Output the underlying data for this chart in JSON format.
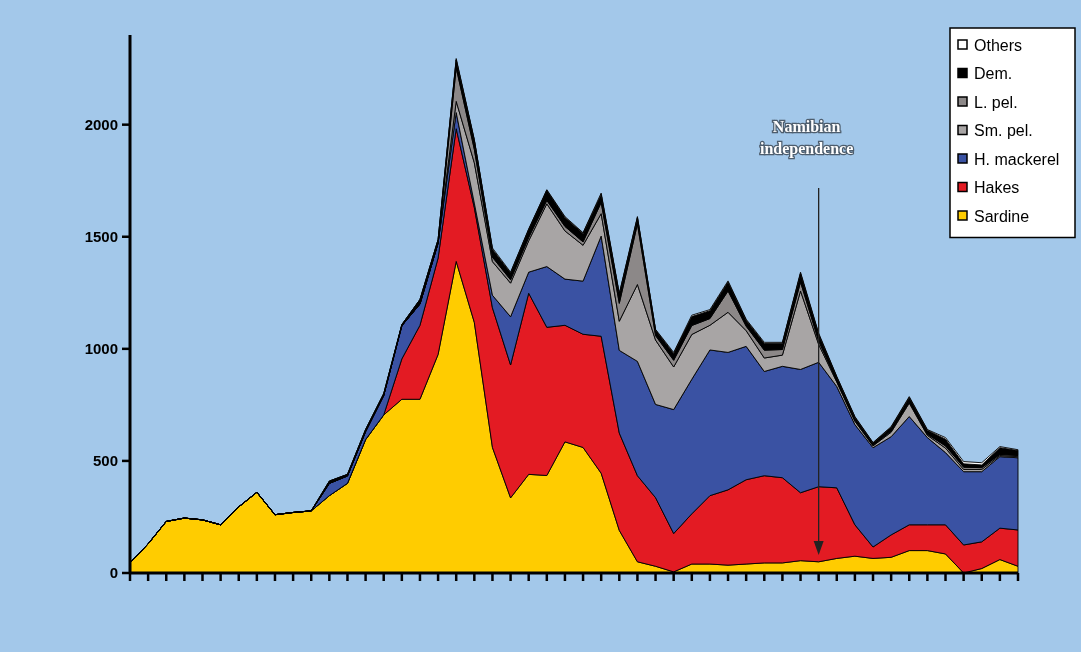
{
  "chart_data": {
    "type": "area",
    "stacked": true,
    "legend": "top right",
    "tick_labels": "y",
    "categories": [
      null,
      null,
      null,
      null,
      null,
      null,
      null,
      null,
      null,
      null,
      null,
      null,
      null,
      null,
      null,
      null,
      null,
      null,
      null,
      null,
      null,
      null,
      null,
      null,
      null,
      null,
      null,
      null,
      null,
      null,
      null,
      null,
      null,
      null,
      null,
      null,
      null,
      null,
      null,
      null,
      null,
      null,
      null,
      null,
      null,
      null,
      null,
      null,
      null,
      null
    ],
    "ylim": [
      0,
      2400
    ],
    "yticks": [
      0,
      500,
      1000,
      1500,
      2000
    ],
    "annotations": [
      "Namibian independence"
    ],
    "series": [
      {
        "name": "Sardine",
        "color": "#ffcc00",
        "values": [
          45,
          130,
          230,
          245,
          237,
          215,
          295,
          360,
          260,
          270,
          277,
          345,
          400,
          595,
          705,
          775,
          775,
          975,
          1390,
          1118,
          560,
          335,
          440,
          435,
          585,
          560,
          445,
          190,
          50,
          30,
          5,
          40,
          40,
          35,
          40,
          45,
          45,
          55,
          50,
          65,
          75,
          65,
          70,
          100,
          100,
          85,
          0,
          20,
          60,
          30
        ]
      },
      {
        "name": "Hakes",
        "color": "#e31b23",
        "values": [
          0,
          0,
          0,
          0,
          0,
          0,
          0,
          0,
          0,
          0,
          0,
          0,
          0,
          0,
          0,
          180,
          330,
          430,
          592,
          512,
          623,
          593,
          808,
          661,
          520,
          505,
          611,
          434,
          384,
          306,
          171,
          224,
          305,
          336,
          376,
          389,
          380,
          303,
          335,
          315,
          140,
          51,
          100,
          115,
          115,
          130,
          125,
          119,
          140,
          162
        ]
      },
      {
        "name": "H. mackerel",
        "color": "#3a52a3",
        "values": [
          0,
          0,
          0,
          0,
          0,
          0,
          0,
          0,
          0,
          0,
          0,
          55,
          33,
          36,
          87,
          148,
          95,
          67,
          72,
          20,
          56,
          215,
          94,
          271,
          206,
          237,
          447,
          369,
          510,
          416,
          553,
          600,
          650,
          613,
          595,
          465,
          497,
          550,
          555,
          452,
          447,
          443,
          438,
          483,
          389,
          322,
          327,
          313,
          319,
          322
        ]
      },
      {
        "name": "Sm. pel.",
        "color": "#a8a5a5",
        "values": [
          0,
          0,
          0,
          0,
          0,
          0,
          0,
          0,
          0,
          0,
          0,
          0,
          0,
          0,
          0,
          0,
          0,
          0,
          50,
          180,
          150,
          150,
          140,
          280,
          215,
          160,
          100,
          130,
          343,
          287,
          190,
          200,
          110,
          179,
          70,
          60,
          50,
          350,
          80,
          20,
          15,
          8,
          20,
          60,
          10,
          20,
          10,
          10,
          5,
          5
        ]
      },
      {
        "name": "L. pel.",
        "color": "#8c8888",
        "values": [
          0,
          0,
          0,
          0,
          0,
          0,
          0,
          0,
          0,
          0,
          0,
          0,
          0,
          0,
          0,
          0,
          0,
          0,
          150,
          60,
          20,
          15,
          15,
          15,
          20,
          15,
          50,
          80,
          270,
          20,
          30,
          40,
          30,
          95,
          20,
          35,
          25,
          40,
          15,
          5,
          5,
          3,
          5,
          5,
          5,
          10,
          10,
          8,
          5,
          5
        ]
      },
      {
        "name": "Dem.",
        "color": "#000000",
        "values": [
          0,
          0,
          0,
          0,
          0,
          0,
          0,
          0,
          0,
          0,
          0,
          10,
          7,
          9,
          8,
          5,
          20,
          15,
          35,
          40,
          35,
          30,
          35,
          45,
          40,
          38,
          35,
          40,
          28,
          25,
          30,
          40,
          35,
          40,
          27,
          30,
          28,
          38,
          30,
          17,
          13,
          10,
          17,
          20,
          18,
          30,
          15,
          12,
          30,
          22
        ]
      },
      {
        "name": "Others",
        "color": "#ffffff",
        "values": [
          0,
          0,
          0,
          0,
          0,
          0,
          0,
          0,
          0,
          0,
          0,
          0,
          0,
          0,
          0,
          0,
          0,
          0,
          6,
          4,
          6,
          4,
          3,
          3,
          4,
          3,
          7,
          5,
          5,
          3,
          5,
          6,
          5,
          5,
          4,
          5,
          4,
          6,
          5,
          3,
          3,
          2,
          3,
          4,
          3,
          7,
          10,
          10,
          5,
          4
        ]
      }
    ]
  }
}
